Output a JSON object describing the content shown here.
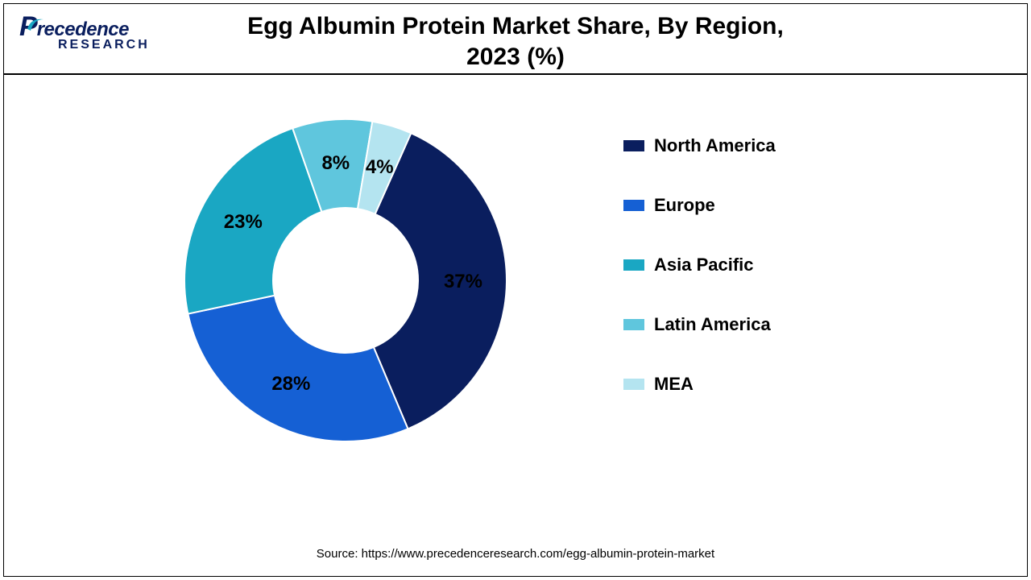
{
  "logo": {
    "brand_first_letter": "P",
    "brand_rest": "recedence",
    "brand_sub": "RESEARCH",
    "color": "#0a1e5e"
  },
  "title_line1": "Egg Albumin Protein Market Share, By Region,",
  "title_line2": "2023 (%)",
  "chart": {
    "type": "donut",
    "inner_radius_ratio": 0.45,
    "label_radius_ratio": 0.73,
    "label_fontsize": 24,
    "background_color": "#ffffff",
    "start_angle_deg": 24,
    "slices": [
      {
        "label": "North America",
        "value": 37,
        "color": "#0a1e5e",
        "display": "37%"
      },
      {
        "label": "Europe",
        "value": 28,
        "color": "#1560d4",
        "display": "28%"
      },
      {
        "label": "Asia Pacific",
        "value": 23,
        "color": "#1aa7c3",
        "display": "23%"
      },
      {
        "label": "Latin America",
        "value": 8,
        "color": "#5fc6dd",
        "display": "8%"
      },
      {
        "label": "MEA",
        "value": 4,
        "color": "#b4e4f0",
        "display": "4%"
      }
    ]
  },
  "legend": {
    "items": [
      {
        "label": "North America",
        "color": "#0a1e5e"
      },
      {
        "label": "Europe",
        "color": "#1560d4"
      },
      {
        "label": "Asia Pacific",
        "color": "#1aa7c3"
      },
      {
        "label": "Latin America",
        "color": "#5fc6dd"
      },
      {
        "label": "MEA",
        "color": "#b4e4f0"
      }
    ],
    "label_fontsize": 22,
    "label_fontweight": 700
  },
  "source_text": "Source: https://www.precedenceresearch.com/egg-albumin-protein-market"
}
